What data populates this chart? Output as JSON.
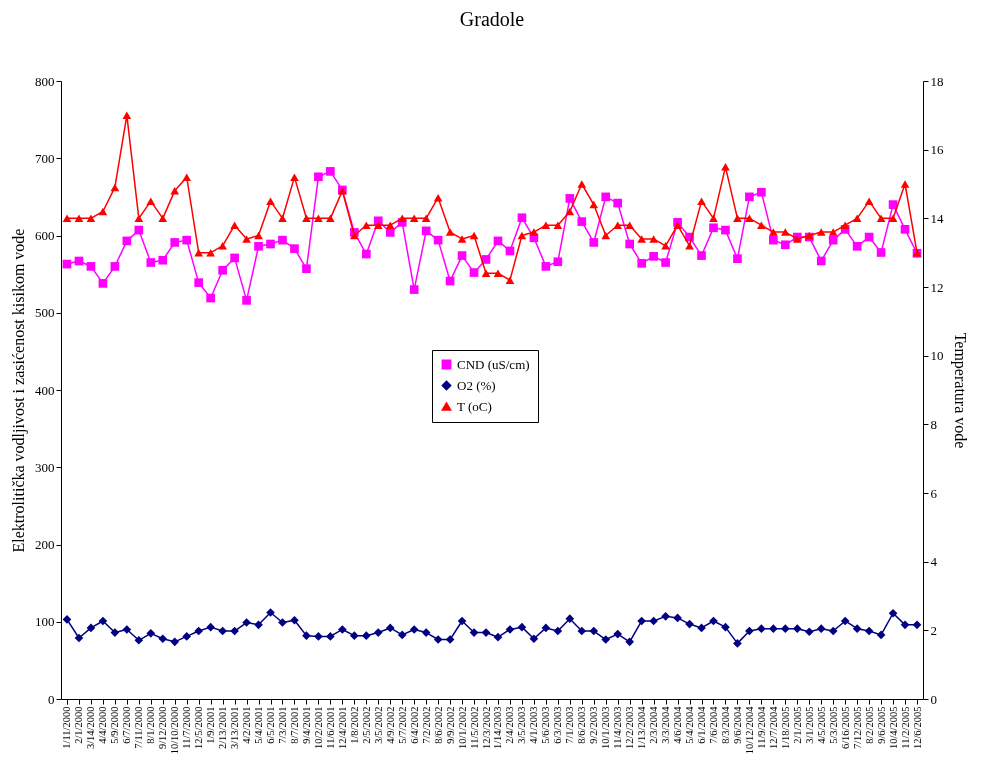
{
  "chart_data": {
    "type": "line",
    "title": "Gradole",
    "ylabel": "Elektrolitička vodljivost i zasićenost kisikom vode",
    "y2label": "Temperatura vode",
    "categories": [
      "1/11/2000",
      "2/1/2000",
      "3/14/2000",
      "4/4/2000",
      "5/9/2000",
      "6/7/2000",
      "7/11/2000",
      "8/1/2000",
      "9/12/2000",
      "10/10/2000",
      "11/7/2000",
      "12/5/2000",
      "1/9/2001",
      "2/13/2001",
      "3/13/2001",
      "4/2/2001",
      "5/4/2001",
      "6/5/2001",
      "7/3/2001",
      "8/7/2001",
      "9/4/2001",
      "10/2/2001",
      "11/6/2001",
      "12/4/2001",
      "1/8/2002",
      "2/5/2002",
      "3/5/2002",
      "4/9/2002",
      "5/7/2002",
      "6/4/2002",
      "7/2/2002",
      "8/6/2002",
      "9/9/2002",
      "10/1/2002",
      "11/5/2002",
      "12/3/2002",
      "1/14/2003",
      "2/4/2003",
      "3/5/2003",
      "4/1/2003",
      "5/6/2003",
      "6/3/2003",
      "7/1/2003",
      "8/6/2003",
      "9/2/2003",
      "10/1/2003",
      "11/4/2003",
      "12/2/2003",
      "1/13/2004",
      "2/3/2004",
      "3/3/2004",
      "4/6/2004",
      "5/4/2004",
      "6/1/2004",
      "7/6/2004",
      "8/3/2004",
      "9/6/2004",
      "10/12/2004",
      "11/9/2004",
      "12/7/2004",
      "1/18/2005",
      "2/1/2005",
      "3/1/2005",
      "4/5/2005",
      "5/3/2005",
      "6/16/2005",
      "7/12/2005",
      "8/2/2005",
      "9/6/2005",
      "10/4/2005",
      "11/2/2005",
      "12/6/2005"
    ],
    "series": [
      {
        "name": "CND (uS/cm)",
        "color": "#ff00ff",
        "marker": "square",
        "values": [
          563,
          567,
          560,
          538,
          560,
          593,
          607,
          565,
          568,
          591,
          594,
          539,
          519,
          555,
          571,
          516,
          586,
          589,
          594,
          583,
          557,
          676,
          683,
          659,
          604,
          576,
          619,
          604,
          617,
          530,
          606,
          594,
          541,
          574,
          552,
          569,
          593,
          580,
          623,
          597,
          560,
          566,
          648,
          618,
          591,
          650,
          642,
          589,
          564,
          573,
          565,
          617,
          598,
          574,
          610,
          607,
          570,
          650,
          656,
          594,
          588,
          598,
          598,
          567,
          594,
          608,
          586,
          598,
          578,
          640,
          608,
          577
        ]
      },
      {
        "name": "O2 (%)",
        "color": "#000080",
        "marker": "diamond",
        "values": [
          103,
          79,
          92,
          101,
          86,
          90,
          76,
          85,
          78,
          74,
          81,
          88,
          93,
          88,
          88,
          99,
          96,
          112,
          99,
          102,
          82,
          81,
          81,
          90,
          82,
          82,
          86,
          92,
          83,
          90,
          86,
          77,
          77,
          101,
          86,
          86,
          80,
          90,
          93,
          78,
          92,
          88,
          104,
          88,
          88,
          77,
          84,
          74,
          101,
          101,
          107,
          105,
          97,
          92,
          101,
          93,
          72,
          88,
          91,
          91,
          91,
          91,
          87,
          91,
          88,
          101,
          91,
          88,
          83,
          111,
          96,
          96
        ]
      },
      {
        "name": "T (oC)",
        "color": "#ff0000",
        "marker": "triangle",
        "axis": "y2",
        "values": [
          14,
          14,
          14,
          14.2,
          14.9,
          17,
          14,
          14.5,
          14,
          14.8,
          15.2,
          13,
          13,
          13.2,
          13.8,
          13.4,
          13.5,
          14.5,
          14,
          15.2,
          14,
          14,
          14,
          14.8,
          13.5,
          13.8,
          13.8,
          13.8,
          14,
          14,
          14,
          14.6,
          13.6,
          13.4,
          13.5,
          12.4,
          12.4,
          12.2,
          13.5,
          13.6,
          13.8,
          13.8,
          14.2,
          15,
          14.4,
          13.5,
          13.8,
          13.8,
          13.4,
          13.4,
          13.2,
          13.8,
          13.2,
          14.5,
          14,
          15.5,
          14,
          14,
          13.8,
          13.6,
          13.6,
          13.4,
          13.5,
          13.6,
          13.6,
          13.8,
          14,
          14.5,
          14,
          14,
          15,
          13
        ]
      }
    ],
    "ylim": [
      0,
      800
    ],
    "yticks": [
      0,
      100,
      200,
      300,
      400,
      500,
      600,
      700,
      800
    ],
    "y2lim": [
      0,
      18
    ],
    "y2ticks": [
      0,
      2,
      4,
      6,
      8,
      10,
      12,
      14,
      16,
      18
    ],
    "legend": "center"
  }
}
